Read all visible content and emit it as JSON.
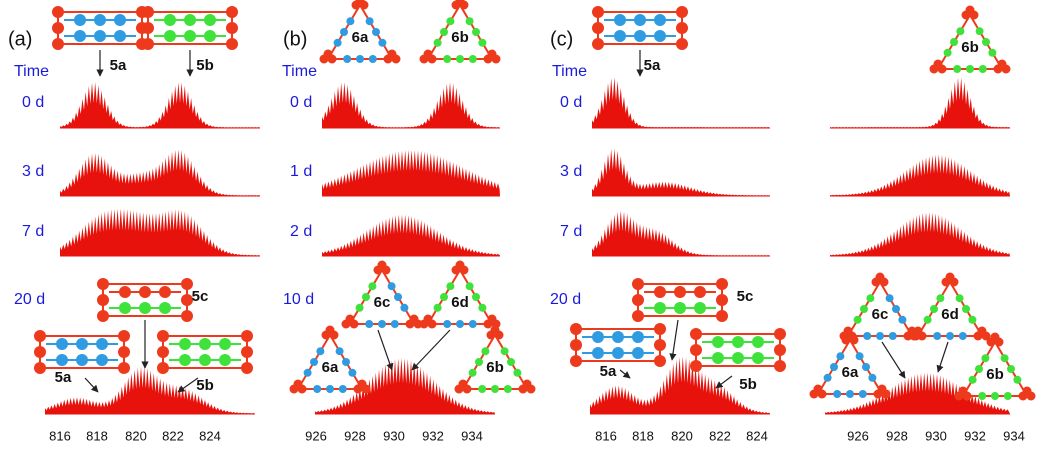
{
  "panels": [
    {
      "label": "(a)",
      "time_header": "Time",
      "times": [
        "0 d",
        "3 d",
        "7 d",
        "20 d"
      ],
      "molecules": [
        "5a",
        "5b",
        "5c",
        "5a",
        "5b"
      ],
      "tick_groups": [
        [
          "816",
          "818",
          "820",
          "822",
          "824"
        ]
      ]
    },
    {
      "label": "(b)",
      "time_header": "Time",
      "times": [
        "0 d",
        "1 d",
        "2 d",
        "10 d"
      ],
      "molecules": [
        "6a",
        "6b",
        "6c",
        "6d",
        "6a",
        "6b"
      ],
      "tick_groups": [
        [
          "926",
          "928",
          "930",
          "932",
          "934"
        ]
      ]
    },
    {
      "label": "(c)",
      "time_header": "Time",
      "times": [
        "0 d",
        "3 d",
        "7 d",
        "20 d"
      ],
      "molecules": [
        "5a",
        "6b",
        "5c",
        "5a",
        "5b",
        "6c",
        "6d",
        "6a",
        "6b"
      ],
      "tick_groups": [
        [
          "816",
          "818",
          "820",
          "822",
          "824"
        ],
        [
          "926",
          "928",
          "930",
          "932",
          "934"
        ]
      ]
    }
  ]
}
